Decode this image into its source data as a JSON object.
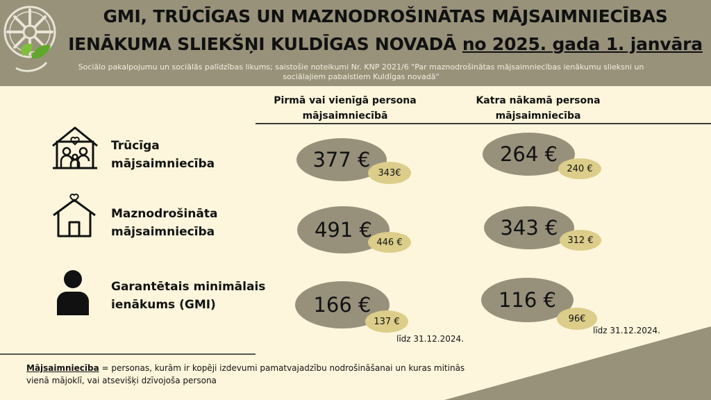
{
  "header": {
    "title_line1": "GMI, TRŪCĪGAS UN MAZNODROŠINĀTAS MĀJSAIMNIECĪBAS",
    "title_line2_part1": "IENĀKUMA SLIEKŠŅI KULDĪGAS NOVADĀ ",
    "title_line2_part2": "no 2025. gada 1. janvāra",
    "subtitle": "Sociālo pakalpojumu un sociālās palīdzības likums; saistošie noteikumi Nr. KNP 2021/6  \"Par maznodrošinātas mājsaimniecības ienākumu slieksni un sociālajiem pabalstiem Kuldīgas novadā\""
  },
  "columns": {
    "first": "Pirmā vai vienīgā persona mājsaimniecībā",
    "next": "Katra nākamā persona mājsaimniecība"
  },
  "rows": [
    {
      "icon": "family-house-icon",
      "label": "Trūcīga mājsaimniecība",
      "first_new": "377 €",
      "first_old": "343€",
      "next_new": "264 €",
      "next_old": "240 €"
    },
    {
      "icon": "house-heart-icon",
      "label": "Maznodrošināta mājsaimniecība",
      "first_new": "491 €",
      "first_old": "446 €",
      "next_new": "343 €",
      "next_old": "312 €"
    },
    {
      "icon": "person-icon",
      "label": "Garantētais minimālais ienākums (GMI)",
      "first_new": "166 €",
      "first_old": "137 €",
      "next_new": "116 €",
      "next_old": "96€"
    }
  ],
  "notes": {
    "until_first": "līdz 31.12.2024.",
    "until_next": "līdz 31.12.2024."
  },
  "footnote": {
    "term": "Mājsaimniecība",
    "definition": " = personas, kurām ir kopēji izdevumi pamatvajadzību nodrošināšanai un kuras mitinās vienā mājoklī, vai atsevišķi dzīvojoša persona"
  },
  "colors": {
    "header_bg": "#98927b",
    "page_bg": "#fdf6dc",
    "big_circle": "#97917c",
    "small_circle": "#dccd8a",
    "triangle": "#98927b"
  },
  "logo": {
    "icon": "emblem-with-leaves-icon"
  }
}
